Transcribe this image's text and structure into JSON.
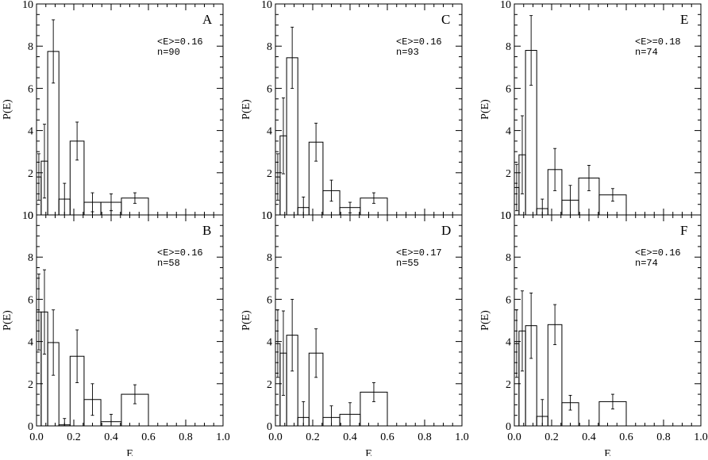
{
  "chart_data": [
    {
      "type": "bar",
      "panel": "A",
      "stats": [
        "<E>=0.16",
        "n=90"
      ],
      "xlabel": "",
      "ylabel": "P(E)",
      "xlim": [
        0,
        1
      ],
      "ylim": [
        0,
        10
      ],
      "bin_width": 0.075,
      "bins": [
        {
          "x0": 0.0,
          "x1": 0.025,
          "value": 1.8,
          "err": 1.1
        },
        {
          "x0": 0.025,
          "x1": 0.06,
          "value": 2.55,
          "err": 1.75
        },
        {
          "x0": 0.06,
          "x1": 0.12,
          "value": 7.75,
          "err": 1.5
        },
        {
          "x0": 0.12,
          "x1": 0.18,
          "value": 0.75,
          "err": 0.75
        },
        {
          "x0": 0.18,
          "x1": 0.255,
          "value": 3.5,
          "err": 0.9
        },
        {
          "x0": 0.255,
          "x1": 0.345,
          "value": 0.6,
          "err": 0.45
        },
        {
          "x0": 0.345,
          "x1": 0.455,
          "value": 0.6,
          "err": 0.4
        },
        {
          "x0": 0.455,
          "x1": 0.6,
          "value": 0.8,
          "err": 0.25
        }
      ]
    },
    {
      "type": "bar",
      "panel": "C",
      "stats": [
        "<E>=0.16",
        "n=93"
      ],
      "xlabel": "",
      "ylabel": "P(E)",
      "xlim": [
        0,
        1
      ],
      "ylim": [
        0,
        10
      ],
      "bins": [
        {
          "x0": 0.0,
          "x1": 0.025,
          "value": 1.8,
          "err": 1.1
        },
        {
          "x0": 0.025,
          "x1": 0.06,
          "value": 3.75,
          "err": 1.8
        },
        {
          "x0": 0.06,
          "x1": 0.12,
          "value": 7.45,
          "err": 1.45
        },
        {
          "x0": 0.12,
          "x1": 0.18,
          "value": 0.35,
          "err": 0.5
        },
        {
          "x0": 0.18,
          "x1": 0.255,
          "value": 3.45,
          "err": 0.9
        },
        {
          "x0": 0.255,
          "x1": 0.345,
          "value": 1.15,
          "err": 0.5
        },
        {
          "x0": 0.345,
          "x1": 0.455,
          "value": 0.35,
          "err": 0.25
        },
        {
          "x0": 0.455,
          "x1": 0.6,
          "value": 0.8,
          "err": 0.25
        }
      ]
    },
    {
      "type": "bar",
      "panel": "E",
      "stats": [
        "<E>=0.18",
        "n=74"
      ],
      "xlabel": "",
      "ylabel": "P(E)",
      "xlim": [
        0,
        1
      ],
      "ylim": [
        0,
        10
      ],
      "bins": [
        {
          "x0": 0.0,
          "x1": 0.025,
          "value": 1.3,
          "err": 1.1
        },
        {
          "x0": 0.025,
          "x1": 0.06,
          "value": 2.85,
          "err": 1.85
        },
        {
          "x0": 0.06,
          "x1": 0.12,
          "value": 7.8,
          "err": 1.65
        },
        {
          "x0": 0.12,
          "x1": 0.18,
          "value": 0.3,
          "err": 0.45
        },
        {
          "x0": 0.18,
          "x1": 0.255,
          "value": 2.15,
          "err": 1.0
        },
        {
          "x0": 0.255,
          "x1": 0.345,
          "value": 0.7,
          "err": 0.7
        },
        {
          "x0": 0.345,
          "x1": 0.455,
          "value": 1.75,
          "err": 0.6
        },
        {
          "x0": 0.455,
          "x1": 0.6,
          "value": 0.95,
          "err": 0.3
        }
      ]
    },
    {
      "type": "bar",
      "panel": "B",
      "stats": [
        "<E>=0.16",
        "n=58"
      ],
      "xlabel": "E",
      "ylabel": "P(E)",
      "xlim": [
        0,
        1
      ],
      "ylim": [
        0,
        10
      ],
      "xticks": [
        "0.0",
        "0.2",
        "0.4",
        "0.6",
        "0.8",
        "1.0"
      ],
      "bins": [
        {
          "x0": 0.0,
          "x1": 0.025,
          "value": 5.4,
          "err": 1.8
        },
        {
          "x0": 0.025,
          "x1": 0.06,
          "value": 5.4,
          "err": 2.0
        },
        {
          "x0": 0.06,
          "x1": 0.12,
          "value": 3.95,
          "err": 1.55
        },
        {
          "x0": 0.12,
          "x1": 0.18,
          "value": 0.05,
          "err": 0.3
        },
        {
          "x0": 0.18,
          "x1": 0.255,
          "value": 3.3,
          "err": 1.25
        },
        {
          "x0": 0.255,
          "x1": 0.345,
          "value": 1.25,
          "err": 0.75
        },
        {
          "x0": 0.345,
          "x1": 0.455,
          "value": 0.2,
          "err": 0.35
        },
        {
          "x0": 0.455,
          "x1": 0.6,
          "value": 1.5,
          "err": 0.45
        },
        {
          "x0": 0.6,
          "x1": 0.8,
          "value": 0.0,
          "err": 0
        }
      ]
    },
    {
      "type": "bar",
      "panel": "D",
      "stats": [
        "<E>=0.17",
        "n=55"
      ],
      "xlabel": "E",
      "ylabel": "P(E)",
      "xlim": [
        0,
        1
      ],
      "ylim": [
        0,
        10
      ],
      "xticks": [
        "0.0",
        "0.2",
        "0.4",
        "0.6",
        "0.8",
        "1.0"
      ],
      "bins": [
        {
          "x0": 0.0,
          "x1": 0.025,
          "value": 3.9,
          "err": 1.6
        },
        {
          "x0": 0.025,
          "x1": 0.06,
          "value": 3.45,
          "err": 2.0
        },
        {
          "x0": 0.06,
          "x1": 0.12,
          "value": 4.3,
          "err": 1.7
        },
        {
          "x0": 0.12,
          "x1": 0.18,
          "value": 0.4,
          "err": 0.75
        },
        {
          "x0": 0.18,
          "x1": 0.255,
          "value": 3.45,
          "err": 1.15
        },
        {
          "x0": 0.255,
          "x1": 0.345,
          "value": 0.4,
          "err": 0.55
        },
        {
          "x0": 0.345,
          "x1": 0.455,
          "value": 0.55,
          "err": 0.55
        },
        {
          "x0": 0.455,
          "x1": 0.6,
          "value": 1.6,
          "err": 0.45
        },
        {
          "x0": 0.6,
          "x1": 0.8,
          "value": 0.0,
          "err": 0
        }
      ]
    },
    {
      "type": "bar",
      "panel": "F",
      "stats": [
        "<E>=0.16",
        "n=74"
      ],
      "xlabel": "E",
      "ylabel": "P(E)",
      "xlim": [
        0,
        1
      ],
      "ylim": [
        0,
        10
      ],
      "xticks": [
        "0.0",
        "0.2",
        "0.4",
        "0.6",
        "0.8",
        "1.0"
      ],
      "bins": [
        {
          "x0": 0.0,
          "x1": 0.025,
          "value": 3.9,
          "err": 1.6
        },
        {
          "x0": 0.025,
          "x1": 0.06,
          "value": 4.5,
          "err": 1.9
        },
        {
          "x0": 0.06,
          "x1": 0.12,
          "value": 4.75,
          "err": 1.55
        },
        {
          "x0": 0.12,
          "x1": 0.18,
          "value": 0.45,
          "err": 0.8
        },
        {
          "x0": 0.18,
          "x1": 0.255,
          "value": 4.8,
          "err": 0.95
        },
        {
          "x0": 0.255,
          "x1": 0.345,
          "value": 1.1,
          "err": 0.35
        },
        {
          "x0": 0.345,
          "x1": 0.455,
          "value": 0.0,
          "err": 0
        },
        {
          "x0": 0.455,
          "x1": 0.6,
          "value": 1.15,
          "err": 0.35
        },
        {
          "x0": 0.6,
          "x1": 0.8,
          "value": 0.0,
          "err": 0
        }
      ]
    }
  ]
}
